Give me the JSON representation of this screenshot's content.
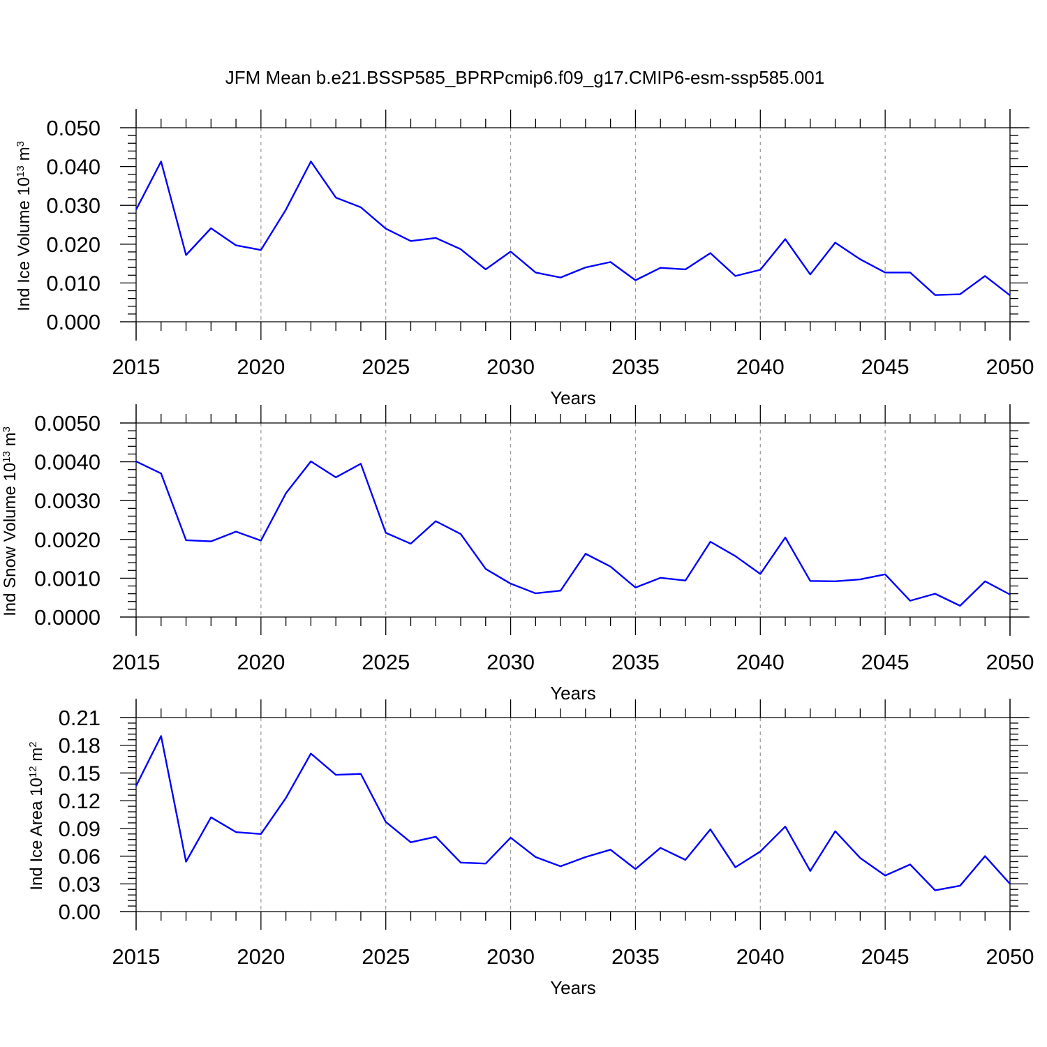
{
  "title": "JFM Mean b.e21.BSSP585_BPRPcmip6.f09_g17.CMIP6-esm-ssp585.001",
  "line_color": "#0000ff",
  "grid_color": "#999999",
  "chart_data": [
    {
      "type": "line",
      "ylabel": "Ind Ice Volume 10",
      "ylabel_sup": "13",
      "ylabel_unit": " m",
      "ylabel_unit_sup": "3",
      "xlabel": "Years",
      "xlim": [
        2015,
        2050
      ],
      "ylim": [
        0,
        0.05
      ],
      "yticks": [
        0,
        0.01,
        0.02,
        0.03,
        0.04,
        0.05
      ],
      "yticklabels": [
        "0.000",
        "0.010",
        "0.020",
        "0.030",
        "0.040",
        "0.050"
      ],
      "xticks": [
        2015,
        2020,
        2025,
        2030,
        2035,
        2040,
        2045,
        2050
      ],
      "xticklabels": [
        "2015",
        "2020",
        "2025",
        "2030",
        "2035",
        "2040",
        "2045",
        "2050"
      ],
      "grid": "vertical dashed at labeled years",
      "series": [
        {
          "x": [
            2015,
            2016,
            2017,
            2018,
            2019,
            2020,
            2021,
            2022,
            2023,
            2024,
            2025,
            2026,
            2027,
            2028,
            2029,
            2030,
            2031,
            2032,
            2033,
            2034,
            2035,
            2036,
            2037,
            2038,
            2039,
            2040,
            2041,
            2042,
            2043,
            2044,
            2045,
            2046,
            2047,
            2048,
            2049,
            2050
          ],
          "values": [
            0.0289,
            0.0413,
            0.0172,
            0.0241,
            0.0197,
            0.0185,
            0.0289,
            0.0413,
            0.032,
            0.0295,
            0.024,
            0.0208,
            0.0216,
            0.0187,
            0.0135,
            0.0181,
            0.0127,
            0.0114,
            0.014,
            0.0154,
            0.0107,
            0.0139,
            0.0135,
            0.0177,
            0.0118,
            0.0134,
            0.0213,
            0.0122,
            0.0204,
            0.0161,
            0.0127,
            0.0127,
            0.0069,
            0.0071,
            0.0118,
            0.0068
          ]
        }
      ]
    },
    {
      "type": "line",
      "ylabel": "Ind Snow Volume 10",
      "ylabel_sup": "13",
      "ylabel_unit": " m",
      "ylabel_unit_sup": "3",
      "xlabel": "Years",
      "xlim": [
        2015,
        2050
      ],
      "ylim": [
        0,
        0.005
      ],
      "yticks": [
        0,
        0.001,
        0.002,
        0.003,
        0.004,
        0.005
      ],
      "yticklabels": [
        "0.0000",
        "0.0010",
        "0.0020",
        "0.0030",
        "0.0040",
        "0.0050"
      ],
      "xticks": [
        2015,
        2020,
        2025,
        2030,
        2035,
        2040,
        2045,
        2050
      ],
      "xticklabels": [
        "2015",
        "2020",
        "2025",
        "2030",
        "2035",
        "2040",
        "2045",
        "2050"
      ],
      "grid": "vertical dashed at labeled years",
      "series": [
        {
          "x": [
            2015,
            2016,
            2017,
            2018,
            2019,
            2020,
            2021,
            2022,
            2023,
            2024,
            2025,
            2026,
            2027,
            2028,
            2029,
            2030,
            2031,
            2032,
            2033,
            2034,
            2035,
            2036,
            2037,
            2038,
            2039,
            2040,
            2041,
            2042,
            2043,
            2044,
            2045,
            2046,
            2047,
            2048,
            2049,
            2050
          ],
          "values": [
            0.00401,
            0.0037,
            0.00198,
            0.00195,
            0.0022,
            0.00197,
            0.00319,
            0.00401,
            0.0036,
            0.00395,
            0.00217,
            0.00189,
            0.00247,
            0.00214,
            0.00124,
            0.00086,
            0.00061,
            0.00068,
            0.00163,
            0.0013,
            0.00076,
            0.00101,
            0.00094,
            0.00194,
            0.00157,
            0.00111,
            0.00205,
            0.00093,
            0.00092,
            0.00097,
            0.0011,
            0.00042,
            0.0006,
            0.00029,
            0.00092,
            0.00058
          ]
        }
      ]
    },
    {
      "type": "line",
      "ylabel": "Ind Ice Area 10",
      "ylabel_sup": "12",
      "ylabel_unit": " m",
      "ylabel_unit_sup": "2",
      "xlabel": "Years",
      "xlim": [
        2015,
        2050
      ],
      "ylim": [
        0,
        0.21
      ],
      "yticks": [
        0,
        0.03,
        0.06,
        0.09,
        0.12,
        0.15,
        0.18,
        0.21
      ],
      "yticklabels": [
        "0.00",
        "0.03",
        "0.06",
        "0.09",
        "0.12",
        "0.15",
        "0.18",
        "0.21"
      ],
      "xticks": [
        2015,
        2020,
        2025,
        2030,
        2035,
        2040,
        2045,
        2050
      ],
      "xticklabels": [
        "2015",
        "2020",
        "2025",
        "2030",
        "2035",
        "2040",
        "2045",
        "2050"
      ],
      "grid": "vertical dashed at labeled years",
      "series": [
        {
          "x": [
            2015,
            2016,
            2017,
            2018,
            2019,
            2020,
            2021,
            2022,
            2023,
            2024,
            2025,
            2026,
            2027,
            2028,
            2029,
            2030,
            2031,
            2032,
            2033,
            2034,
            2035,
            2036,
            2037,
            2038,
            2039,
            2040,
            2041,
            2042,
            2043,
            2044,
            2045,
            2046,
            2047,
            2048,
            2049,
            2050
          ],
          "values": [
            0.136,
            0.19,
            0.054,
            0.102,
            0.086,
            0.084,
            0.123,
            0.171,
            0.148,
            0.149,
            0.097,
            0.075,
            0.081,
            0.053,
            0.052,
            0.08,
            0.059,
            0.049,
            0.059,
            0.067,
            0.046,
            0.069,
            0.056,
            0.089,
            0.048,
            0.065,
            0.092,
            0.044,
            0.087,
            0.058,
            0.039,
            0.051,
            0.023,
            0.028,
            0.06,
            0.03
          ]
        }
      ]
    }
  ]
}
